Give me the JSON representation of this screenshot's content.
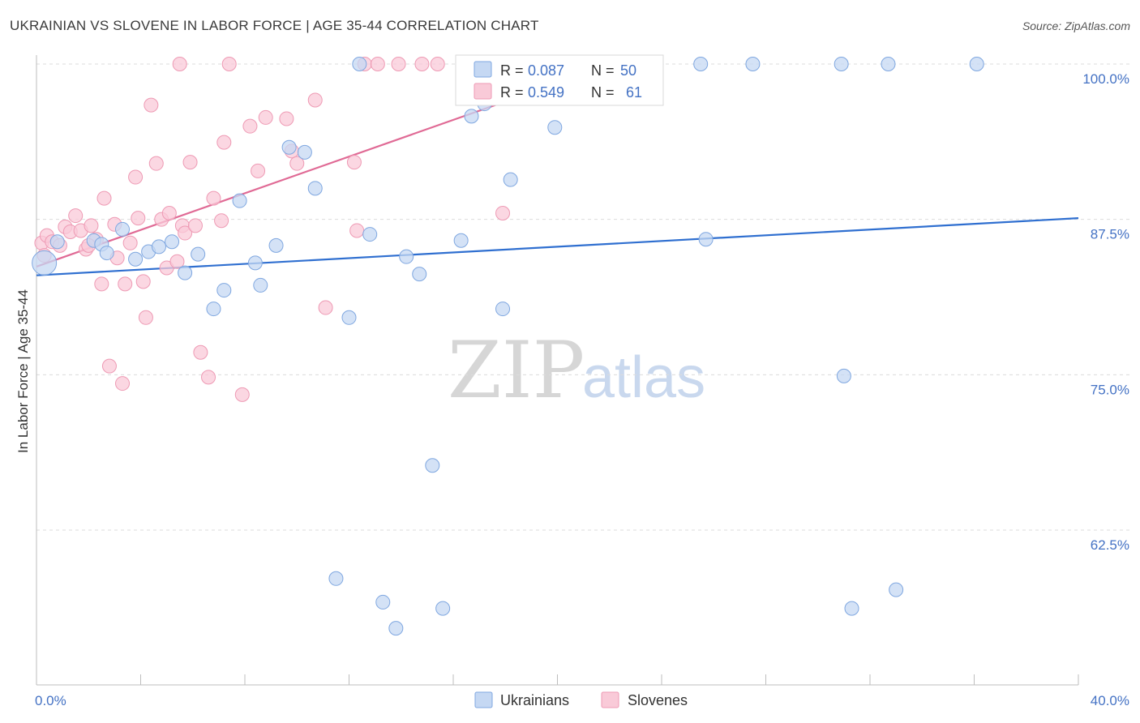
{
  "title": "UKRAINIAN VS SLOVENE IN LABOR FORCE | AGE 35-44 CORRELATION CHART",
  "source": "Source: ZipAtlas.com",
  "watermark": {
    "zip": "ZIP",
    "atlas": "atlas"
  },
  "colors": {
    "ukrainian_fill": "#c5d8f3",
    "ukrainian_stroke": "#7fa7e0",
    "ukrainian_line": "#2f6fd0",
    "slovene_fill": "#f9cad8",
    "slovene_stroke": "#ee9ab4",
    "slovene_line": "#e06a95",
    "grid": "#dcdcdc",
    "tick_text": "#4472c4"
  },
  "legend": {
    "r_label": "R =",
    "n_label": "N =",
    "ukrainians": {
      "r": "0.087",
      "n": "50"
    },
    "slovenes": {
      "r": "0.549",
      "n": "61"
    }
  },
  "chart_data": {
    "type": "scatter",
    "xlabel": "",
    "ylabel": "In Labor Force | Age 35-44",
    "xlim": [
      0,
      40
    ],
    "ylim": [
      50.5,
      101
    ],
    "x_tick_labels": [
      "0.0%",
      "40.0%"
    ],
    "y_tick_labels": [
      "100.0%",
      "87.5%",
      "75.0%",
      "62.5%"
    ],
    "y_ticks": [
      100,
      87.5,
      75,
      62.5
    ],
    "grid": true,
    "legend_entries": [
      "Ukrainians",
      "Slovenes"
    ],
    "series": [
      {
        "name": "Ukrainians",
        "trend": {
          "x": [
            0,
            40
          ],
          "y": [
            83.0,
            87.6
          ]
        },
        "points": [
          {
            "x": 0.3,
            "y": 84.0,
            "big": true
          },
          {
            "x": 0.8,
            "y": 85.7
          },
          {
            "x": 2.2,
            "y": 85.8
          },
          {
            "x": 2.5,
            "y": 85.5
          },
          {
            "x": 2.7,
            "y": 84.8
          },
          {
            "x": 3.3,
            "y": 86.7
          },
          {
            "x": 3.8,
            "y": 84.3
          },
          {
            "x": 4.3,
            "y": 84.9
          },
          {
            "x": 4.7,
            "y": 85.3
          },
          {
            "x": 5.2,
            "y": 85.7
          },
          {
            "x": 5.7,
            "y": 83.2
          },
          {
            "x": 6.2,
            "y": 84.7
          },
          {
            "x": 6.8,
            "y": 80.3
          },
          {
            "x": 7.2,
            "y": 81.8
          },
          {
            "x": 7.8,
            "y": 89.0
          },
          {
            "x": 8.4,
            "y": 84.0
          },
          {
            "x": 8.6,
            "y": 82.2
          },
          {
            "x": 9.2,
            "y": 85.4
          },
          {
            "x": 9.7,
            "y": 93.3
          },
          {
            "x": 10.3,
            "y": 92.9
          },
          {
            "x": 10.7,
            "y": 90.0
          },
          {
            "x": 11.5,
            "y": 58.6
          },
          {
            "x": 12.0,
            "y": 79.6
          },
          {
            "x": 12.4,
            "y": 100.0
          },
          {
            "x": 12.8,
            "y": 86.3
          },
          {
            "x": 13.3,
            "y": 56.7
          },
          {
            "x": 13.8,
            "y": 54.6
          },
          {
            "x": 14.2,
            "y": 84.5
          },
          {
            "x": 14.7,
            "y": 83.1
          },
          {
            "x": 15.2,
            "y": 67.7
          },
          {
            "x": 15.6,
            "y": 56.2
          },
          {
            "x": 16.3,
            "y": 85.8
          },
          {
            "x": 16.7,
            "y": 95.8
          },
          {
            "x": 17.2,
            "y": 96.8
          },
          {
            "x": 17.9,
            "y": 80.3
          },
          {
            "x": 18.2,
            "y": 90.7
          },
          {
            "x": 19.9,
            "y": 94.9
          },
          {
            "x": 21.8,
            "y": 100.0
          },
          {
            "x": 22.3,
            "y": 100.0
          },
          {
            "x": 23.8,
            "y": 100.0
          },
          {
            "x": 25.5,
            "y": 100.0
          },
          {
            "x": 25.7,
            "y": 85.9
          },
          {
            "x": 27.5,
            "y": 100.0
          },
          {
            "x": 30.9,
            "y": 100.0
          },
          {
            "x": 31.0,
            "y": 74.9
          },
          {
            "x": 31.3,
            "y": 56.2
          },
          {
            "x": 32.7,
            "y": 100.0
          },
          {
            "x": 33.0,
            "y": 57.7
          },
          {
            "x": 36.1,
            "y": 100.0
          },
          {
            "x": 17.0,
            "y": 100.0
          }
        ]
      },
      {
        "name": "Slovenes",
        "trend": {
          "x": [
            0,
            22.5
          ],
          "y": [
            83.7,
            100.3
          ]
        },
        "points": [
          {
            "x": 0.2,
            "y": 85.6
          },
          {
            "x": 0.4,
            "y": 86.2
          },
          {
            "x": 0.6,
            "y": 85.7
          },
          {
            "x": 0.9,
            "y": 85.4
          },
          {
            "x": 1.1,
            "y": 86.9
          },
          {
            "x": 1.3,
            "y": 86.5
          },
          {
            "x": 1.5,
            "y": 87.8
          },
          {
            "x": 1.7,
            "y": 86.6
          },
          {
            "x": 1.9,
            "y": 85.1
          },
          {
            "x": 2.1,
            "y": 87.0
          },
          {
            "x": 2.3,
            "y": 85.9
          },
          {
            "x": 2.5,
            "y": 82.3
          },
          {
            "x": 2.6,
            "y": 89.2
          },
          {
            "x": 2.8,
            "y": 75.7
          },
          {
            "x": 3.0,
            "y": 87.1
          },
          {
            "x": 3.1,
            "y": 84.4
          },
          {
            "x": 3.3,
            "y": 74.3
          },
          {
            "x": 3.4,
            "y": 82.3
          },
          {
            "x": 3.6,
            "y": 85.6
          },
          {
            "x": 3.8,
            "y": 90.9
          },
          {
            "x": 3.9,
            "y": 87.6
          },
          {
            "x": 4.1,
            "y": 82.5
          },
          {
            "x": 4.2,
            "y": 79.6
          },
          {
            "x": 4.4,
            "y": 96.7
          },
          {
            "x": 4.6,
            "y": 92.0
          },
          {
            "x": 4.8,
            "y": 87.5
          },
          {
            "x": 5.0,
            "y": 83.6
          },
          {
            "x": 5.1,
            "y": 88.0
          },
          {
            "x": 5.4,
            "y": 84.1
          },
          {
            "x": 5.6,
            "y": 87.0
          },
          {
            "x": 5.7,
            "y": 86.4
          },
          {
            "x": 5.9,
            "y": 92.1
          },
          {
            "x": 6.1,
            "y": 87.0
          },
          {
            "x": 6.3,
            "y": 76.8
          },
          {
            "x": 6.6,
            "y": 74.8
          },
          {
            "x": 6.8,
            "y": 89.2
          },
          {
            "x": 7.1,
            "y": 87.4
          },
          {
            "x": 7.2,
            "y": 93.7
          },
          {
            "x": 7.9,
            "y": 73.4
          },
          {
            "x": 8.2,
            "y": 95.0
          },
          {
            "x": 8.5,
            "y": 91.4
          },
          {
            "x": 8.8,
            "y": 95.7
          },
          {
            "x": 9.6,
            "y": 95.6
          },
          {
            "x": 9.8,
            "y": 93.0
          },
          {
            "x": 10.0,
            "y": 92.0
          },
          {
            "x": 10.7,
            "y": 97.1
          },
          {
            "x": 11.1,
            "y": 80.4
          },
          {
            "x": 12.2,
            "y": 92.1
          },
          {
            "x": 12.3,
            "y": 86.6
          },
          {
            "x": 5.5,
            "y": 100.0
          },
          {
            "x": 7.4,
            "y": 100.0
          },
          {
            "x": 12.6,
            "y": 100.0
          },
          {
            "x": 13.1,
            "y": 100.0
          },
          {
            "x": 13.9,
            "y": 100.0
          },
          {
            "x": 14.8,
            "y": 100.0
          },
          {
            "x": 15.4,
            "y": 100.0
          },
          {
            "x": 17.9,
            "y": 88.0
          },
          {
            "x": 21.5,
            "y": 100.0
          },
          {
            "x": 22.0,
            "y": 100.0
          },
          {
            "x": 2.0,
            "y": 85.4
          },
          {
            "x": 0.3,
            "y": 84.6
          }
        ]
      }
    ]
  }
}
